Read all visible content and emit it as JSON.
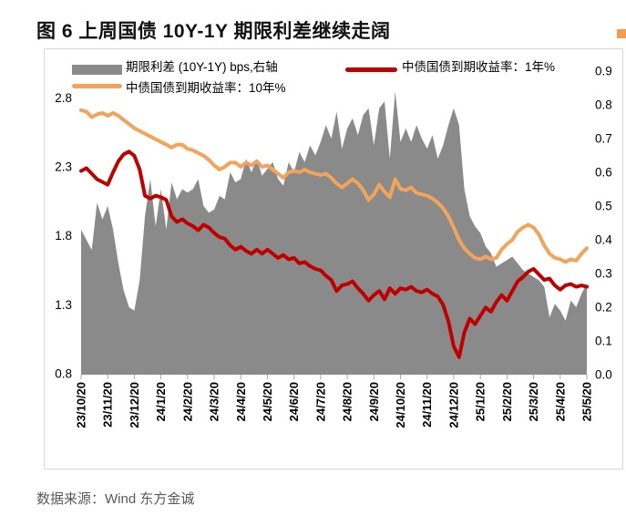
{
  "title": "图 6 上周国债 10Y-1Y 期限利差继续走阔",
  "source": "数据来源：Wind 东方金诚",
  "corner_tab_color": "#F59B4B",
  "colors": {
    "spread_area": "#8A8A8A",
    "yield_1y_line": "#C00000",
    "yield_10y_line": "#F2A35C",
    "chart_border": "#D9D9D9",
    "tick": "#A6A6A6",
    "source_text": "#595959"
  },
  "legend": [
    {
      "label": "期限利差 (10Y-1Y) bps,右轴"
    },
    {
      "label": "中债国债到期收益率：1年%"
    },
    {
      "label": "中债国债到期收益率：10年%"
    }
  ],
  "chart_data": {
    "type": "line+area",
    "title": "上周国债10Y-1Y期限利差继续走阔",
    "x_labels": [
      "23/10/20",
      "23/11/20",
      "23/12/20",
      "24/1/20",
      "24/2/20",
      "24/3/20",
      "24/4/20",
      "24/5/20",
      "24/6/20",
      "24/7/20",
      "24/8/20",
      "24/9/20",
      "24/10/20",
      "24/11/20",
      "24/12/20",
      "25/1/20",
      "25/2/20",
      "25/3/20",
      "25/4/20",
      "25/5/20"
    ],
    "left_axis": {
      "min": 0.8,
      "max": 3.0,
      "labels": [
        "2.8",
        "2.3",
        "1.8",
        "1.3",
        "0.8"
      ]
    },
    "right_axis": {
      "min": 0.0,
      "max": 0.9,
      "labels": [
        "0.9",
        "0.8",
        "0.7",
        "0.6",
        "0.5",
        "0.4",
        "0.3",
        "0.2",
        "0.1",
        "0.0"
      ]
    },
    "grid": "off",
    "legend_position": "top",
    "series": [
      {
        "name": "期限利差 (10Y-1Y) bps,右轴",
        "type": "area",
        "axis": "right",
        "color": "#8A8A8A",
        "values": [
          0.43,
          0.4,
          0.37,
          0.51,
          0.46,
          0.5,
          0.43,
          0.33,
          0.25,
          0.2,
          0.19,
          0.28,
          0.47,
          0.58,
          0.44,
          0.55,
          0.43,
          0.57,
          0.52,
          0.55,
          0.54,
          0.55,
          0.58,
          0.5,
          0.48,
          0.49,
          0.53,
          0.52,
          0.6,
          0.57,
          0.58,
          0.64,
          0.6,
          0.64,
          0.59,
          0.61,
          0.63,
          0.58,
          0.56,
          0.63,
          0.6,
          0.66,
          0.63,
          0.68,
          0.65,
          0.69,
          0.74,
          0.7,
          0.78,
          0.67,
          0.73,
          0.76,
          0.71,
          0.77,
          0.79,
          0.68,
          0.79,
          0.81,
          0.64,
          0.84,
          0.69,
          0.73,
          0.69,
          0.74,
          0.7,
          0.67,
          0.71,
          0.64,
          0.68,
          0.74,
          0.79,
          0.74,
          0.55,
          0.47,
          0.44,
          0.42,
          0.38,
          0.36,
          0.32,
          0.33,
          0.34,
          0.35,
          0.33,
          0.31,
          0.3,
          0.29,
          0.28,
          0.26,
          0.17,
          0.21,
          0.19,
          0.16,
          0.22,
          0.2,
          0.24,
          0.27
        ]
      },
      {
        "name": "中债国债到期收益率：1年%",
        "type": "line",
        "axis": "left",
        "color": "#C00000",
        "values": [
          2.27,
          2.29,
          2.25,
          2.21,
          2.19,
          2.17,
          2.26,
          2.34,
          2.39,
          2.41,
          2.38,
          2.28,
          2.09,
          2.07,
          2.09,
          2.08,
          2.06,
          1.94,
          1.9,
          1.92,
          1.89,
          1.87,
          1.84,
          1.88,
          1.86,
          1.82,
          1.79,
          1.78,
          1.73,
          1.7,
          1.72,
          1.69,
          1.67,
          1.7,
          1.67,
          1.7,
          1.67,
          1.64,
          1.66,
          1.63,
          1.64,
          1.6,
          1.61,
          1.58,
          1.56,
          1.55,
          1.51,
          1.48,
          1.4,
          1.44,
          1.45,
          1.47,
          1.42,
          1.38,
          1.33,
          1.37,
          1.4,
          1.34,
          1.42,
          1.38,
          1.42,
          1.41,
          1.43,
          1.4,
          1.39,
          1.41,
          1.38,
          1.36,
          1.3,
          1.18,
          1.0,
          0.92,
          1.1,
          1.2,
          1.16,
          1.22,
          1.28,
          1.25,
          1.32,
          1.37,
          1.33,
          1.4,
          1.47,
          1.5,
          1.54,
          1.56,
          1.52,
          1.48,
          1.49,
          1.44,
          1.41,
          1.44,
          1.45,
          1.43,
          1.44,
          1.43
        ]
      },
      {
        "name": "中债国债到期收益率：10年%",
        "type": "line",
        "axis": "left",
        "color": "#F2A35C",
        "values": [
          2.71,
          2.7,
          2.66,
          2.68,
          2.69,
          2.67,
          2.69,
          2.67,
          2.64,
          2.61,
          2.58,
          2.56,
          2.54,
          2.52,
          2.5,
          2.48,
          2.46,
          2.44,
          2.46,
          2.46,
          2.43,
          2.42,
          2.4,
          2.38,
          2.35,
          2.31,
          2.28,
          2.3,
          2.33,
          2.33,
          2.3,
          2.33,
          2.31,
          2.34,
          2.3,
          2.31,
          2.28,
          2.25,
          2.22,
          2.26,
          2.27,
          2.26,
          2.28,
          2.26,
          2.25,
          2.24,
          2.25,
          2.22,
          2.18,
          2.15,
          2.18,
          2.21,
          2.18,
          2.13,
          2.06,
          2.1,
          2.17,
          2.12,
          2.08,
          2.21,
          2.14,
          2.13,
          2.15,
          2.11,
          2.1,
          2.09,
          2.07,
          2.04,
          2.0,
          1.94,
          1.86,
          1.77,
          1.71,
          1.67,
          1.64,
          1.63,
          1.65,
          1.63,
          1.64,
          1.7,
          1.74,
          1.77,
          1.83,
          1.86,
          1.88,
          1.86,
          1.81,
          1.73,
          1.67,
          1.64,
          1.63,
          1.61,
          1.63,
          1.62,
          1.67,
          1.71
        ]
      }
    ]
  }
}
